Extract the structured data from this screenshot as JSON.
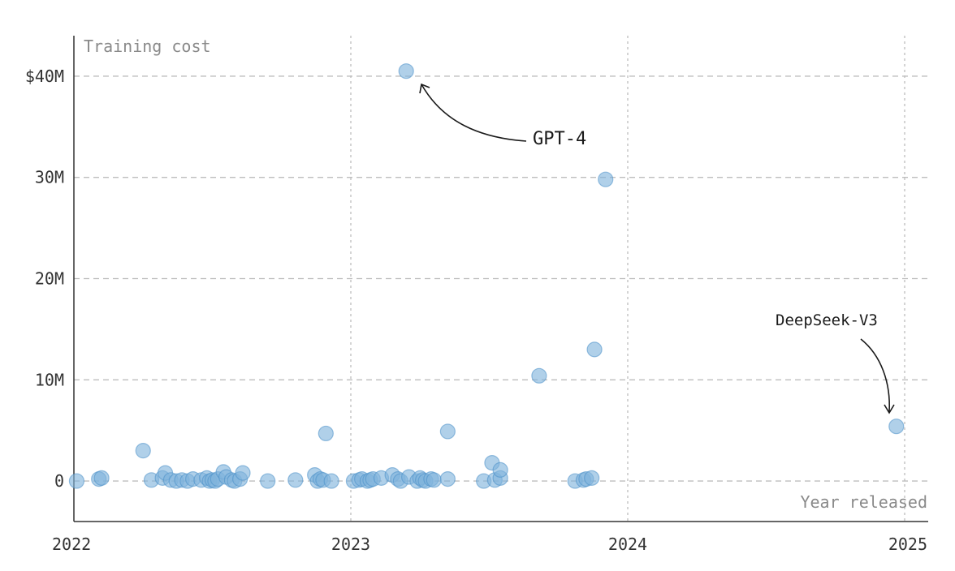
{
  "chart_data": {
    "type": "scatter",
    "ylabel": "Training cost",
    "xlabel": "Year released",
    "x_ticks": [
      2022,
      2023,
      2024,
      2025
    ],
    "x_tick_labels": [
      "2022",
      "2023",
      "2024",
      "2025"
    ],
    "y_ticks": [
      0,
      10,
      20,
      30,
      40
    ],
    "y_tick_labels": [
      "0",
      "10M",
      "20M",
      "30M",
      "$40M"
    ],
    "xlim": [
      2022,
      2025
    ],
    "ylim": [
      -4,
      44
    ],
    "y_unit": "millions USD",
    "grid": true,
    "colors": {
      "point": "#7fb3db",
      "point_stroke": "#4a90c8",
      "grid": "#bdbdbd",
      "axis": "#333333"
    },
    "points": [
      [
        2022.01,
        0.0
      ],
      [
        2022.09,
        0.2
      ],
      [
        2022.1,
        0.3
      ],
      [
        2022.25,
        3.0
      ],
      [
        2022.28,
        0.1
      ],
      [
        2022.32,
        0.3
      ],
      [
        2022.33,
        0.8
      ],
      [
        2022.35,
        0.1
      ],
      [
        2022.37,
        0.0
      ],
      [
        2022.39,
        0.1
      ],
      [
        2022.41,
        0.0
      ],
      [
        2022.43,
        0.2
      ],
      [
        2022.46,
        0.1
      ],
      [
        2022.48,
        0.3
      ],
      [
        2022.49,
        0.0
      ],
      [
        2022.5,
        0.1
      ],
      [
        2022.51,
        0.0
      ],
      [
        2022.52,
        0.2
      ],
      [
        2022.54,
        0.9
      ],
      [
        2022.55,
        0.4
      ],
      [
        2022.57,
        0.1
      ],
      [
        2022.58,
        0.0
      ],
      [
        2022.6,
        0.2
      ],
      [
        2022.61,
        0.8
      ],
      [
        2022.7,
        0.0
      ],
      [
        2022.8,
        0.1
      ],
      [
        2022.87,
        0.6
      ],
      [
        2022.88,
        0.0
      ],
      [
        2022.89,
        0.2
      ],
      [
        2022.9,
        0.1
      ],
      [
        2022.91,
        4.7
      ],
      [
        2022.93,
        0.0
      ],
      [
        2023.01,
        0.0
      ],
      [
        2023.03,
        0.1
      ],
      [
        2023.04,
        0.2
      ],
      [
        2023.06,
        0.0
      ],
      [
        2023.07,
        0.1
      ],
      [
        2023.08,
        0.2
      ],
      [
        2023.11,
        0.3
      ],
      [
        2023.15,
        0.6
      ],
      [
        2023.17,
        0.2
      ],
      [
        2023.18,
        0.0
      ],
      [
        2023.2,
        40.5
      ],
      [
        2023.21,
        0.4
      ],
      [
        2023.24,
        0.0
      ],
      [
        2023.25,
        0.3
      ],
      [
        2023.26,
        0.1
      ],
      [
        2023.27,
        0.0
      ],
      [
        2023.29,
        0.2
      ],
      [
        2023.3,
        0.1
      ],
      [
        2023.35,
        0.2
      ],
      [
        2023.35,
        4.9
      ],
      [
        2023.48,
        0.0
      ],
      [
        2023.51,
        1.8
      ],
      [
        2023.52,
        0.1
      ],
      [
        2023.54,
        0.3
      ],
      [
        2023.54,
        1.1
      ],
      [
        2023.68,
        10.4
      ],
      [
        2023.81,
        0.0
      ],
      [
        2023.84,
        0.1
      ],
      [
        2023.85,
        0.2
      ],
      [
        2023.87,
        0.3
      ],
      [
        2023.88,
        13.0
      ],
      [
        2023.92,
        29.8
      ],
      [
        2024.97,
        5.4
      ]
    ],
    "annotations": [
      {
        "text": "GPT-4",
        "x": 2023.2,
        "y": 40.5
      },
      {
        "text": "DeepSeek-V3",
        "x": 2024.97,
        "y": 5.4
      }
    ]
  }
}
